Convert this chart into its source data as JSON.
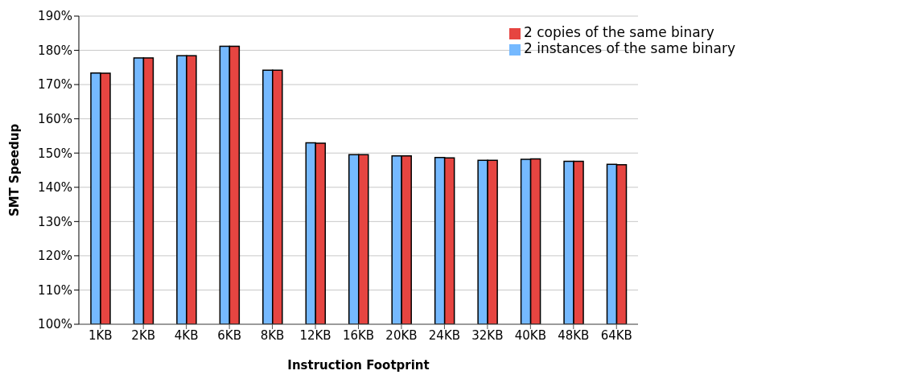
{
  "chart_data": {
    "type": "bar",
    "xlabel": "Instruction Footprint",
    "ylabel": "SMT Speedup",
    "categories": [
      "1KB",
      "2KB",
      "4KB",
      "6KB",
      "8KB",
      "12KB",
      "16KB",
      "20KB",
      "24KB",
      "32KB",
      "40KB",
      "48KB",
      "64KB"
    ],
    "series": [
      {
        "name": "2 instances of the same binary",
        "color": "#75b9ff",
        "values": [
          173.4,
          177.8,
          178.4,
          181.2,
          174.2,
          153.0,
          149.5,
          149.2,
          148.7,
          147.9,
          148.2,
          147.6,
          146.7
        ]
      },
      {
        "name": "2 copies of the same binary",
        "color": "#e64541",
        "values": [
          173.3,
          177.8,
          178.4,
          181.2,
          174.2,
          152.9,
          149.5,
          149.2,
          148.6,
          147.9,
          148.3,
          147.6,
          146.6
        ]
      }
    ],
    "ylim": [
      100,
      190
    ],
    "yticks": [
      {
        "value": 100,
        "label": "100%"
      },
      {
        "value": 110,
        "label": "110%"
      },
      {
        "value": 120,
        "label": "120%"
      },
      {
        "value": 130,
        "label": "130%"
      },
      {
        "value": 140,
        "label": "140%"
      },
      {
        "value": 150,
        "label": "150%"
      },
      {
        "value": 160,
        "label": "160%"
      },
      {
        "value": 170,
        "label": "170%"
      },
      {
        "value": 180,
        "label": "180%"
      },
      {
        "value": 190,
        "label": "190%"
      }
    ],
    "grid": "y",
    "legend": "top right"
  }
}
